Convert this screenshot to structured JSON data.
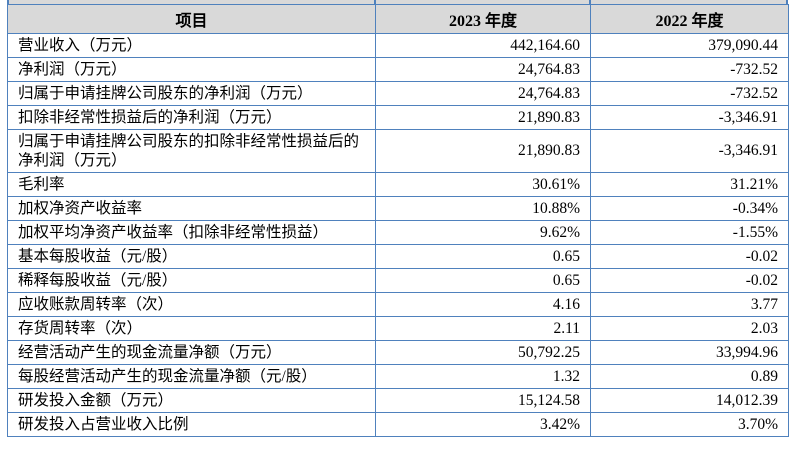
{
  "table": {
    "columns": [
      "项目",
      "2023 年度",
      "2022 年度"
    ],
    "rows": [
      {
        "label": "营业收入（万元）",
        "v2023": "442,164.60",
        "v2022": "379,090.44",
        "tall": false
      },
      {
        "label": "净利润（万元）",
        "v2023": "24,764.83",
        "v2022": "-732.52",
        "tall": false
      },
      {
        "label": "归属于申请挂牌公司股东的净利润（万元）",
        "v2023": "24,764.83",
        "v2022": "-732.52",
        "tall": false
      },
      {
        "label": "扣除非经常性损益后的净利润（万元）",
        "v2023": "21,890.83",
        "v2022": "-3,346.91",
        "tall": false
      },
      {
        "label": "归属于申请挂牌公司股东的扣除非经常性损益后的净利润（万元）",
        "v2023": "21,890.83",
        "v2022": "-3,346.91",
        "tall": true
      },
      {
        "label": "毛利率",
        "v2023": "30.61%",
        "v2022": "31.21%",
        "tall": false
      },
      {
        "label": "加权净资产收益率",
        "v2023": "10.88%",
        "v2022": "-0.34%",
        "tall": false
      },
      {
        "label": "加权平均净资产收益率（扣除非经常性损益）",
        "v2023": "9.62%",
        "v2022": "-1.55%",
        "tall": false
      },
      {
        "label": "基本每股收益（元/股）",
        "v2023": "0.65",
        "v2022": "-0.02",
        "tall": false
      },
      {
        "label": "稀释每股收益（元/股）",
        "v2023": "0.65",
        "v2022": "-0.02",
        "tall": false
      },
      {
        "label": "应收账款周转率（次）",
        "v2023": "4.16",
        "v2022": "3.77",
        "tall": false
      },
      {
        "label": "存货周转率（次）",
        "v2023": "2.11",
        "v2022": "2.03",
        "tall": false
      },
      {
        "label": "经营活动产生的现金流量净额（万元）",
        "v2023": "50,792.25",
        "v2022": "33,994.96",
        "tall": false
      },
      {
        "label": "每股经营活动产生的现金流量净额（元/股）",
        "v2023": "1.32",
        "v2022": "0.89",
        "tall": false
      },
      {
        "label": "研发投入金额（万元）",
        "v2023": "15,124.58",
        "v2022": "14,012.39",
        "tall": false
      },
      {
        "label": "研发投入占营业收入比例",
        "v2023": "3.42%",
        "v2022": "3.70%",
        "tall": false
      }
    ]
  },
  "colors": {
    "border": "#4f81bd",
    "header_bg": "#d9d9d9",
    "text": "#000000",
    "page_bg": "#ffffff"
  }
}
